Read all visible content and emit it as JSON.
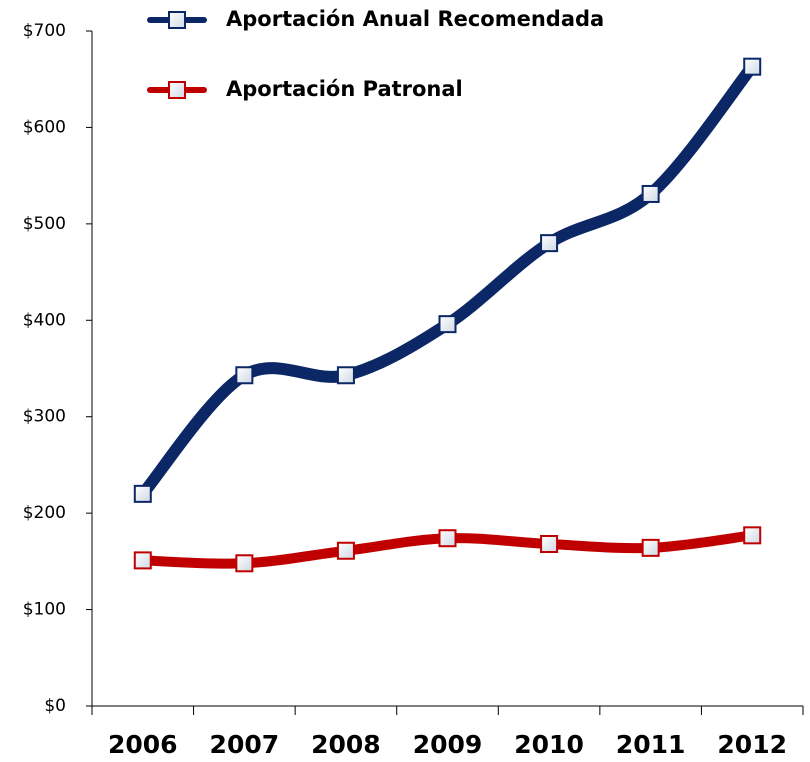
{
  "chart_data": {
    "type": "line",
    "categories": [
      "2006",
      "2007",
      "2008",
      "2009",
      "2010",
      "2011",
      "2012"
    ],
    "series": [
      {
        "name": "Aportación Anual Recomendada",
        "color": "#0b2765",
        "values": [
          220,
          343,
          343,
          396,
          480,
          531,
          663
        ]
      },
      {
        "name": "Aportación Patronal",
        "color": "#c00000",
        "values": [
          151,
          148,
          161,
          174,
          168,
          164,
          177
        ]
      }
    ],
    "ylim": [
      0,
      700
    ],
    "yticks": [
      {
        "value": 0,
        "label": "$0"
      },
      {
        "value": 100,
        "label": "$100"
      },
      {
        "value": 200,
        "label": "$200"
      },
      {
        "value": 300,
        "label": "$300"
      },
      {
        "value": 400,
        "label": "$400"
      },
      {
        "value": 500,
        "label": "$500"
      },
      {
        "value": 600,
        "label": "$600"
      },
      {
        "value": 700,
        "label": "$700"
      }
    ],
    "grid": false,
    "smooth": true,
    "legend": "top"
  }
}
